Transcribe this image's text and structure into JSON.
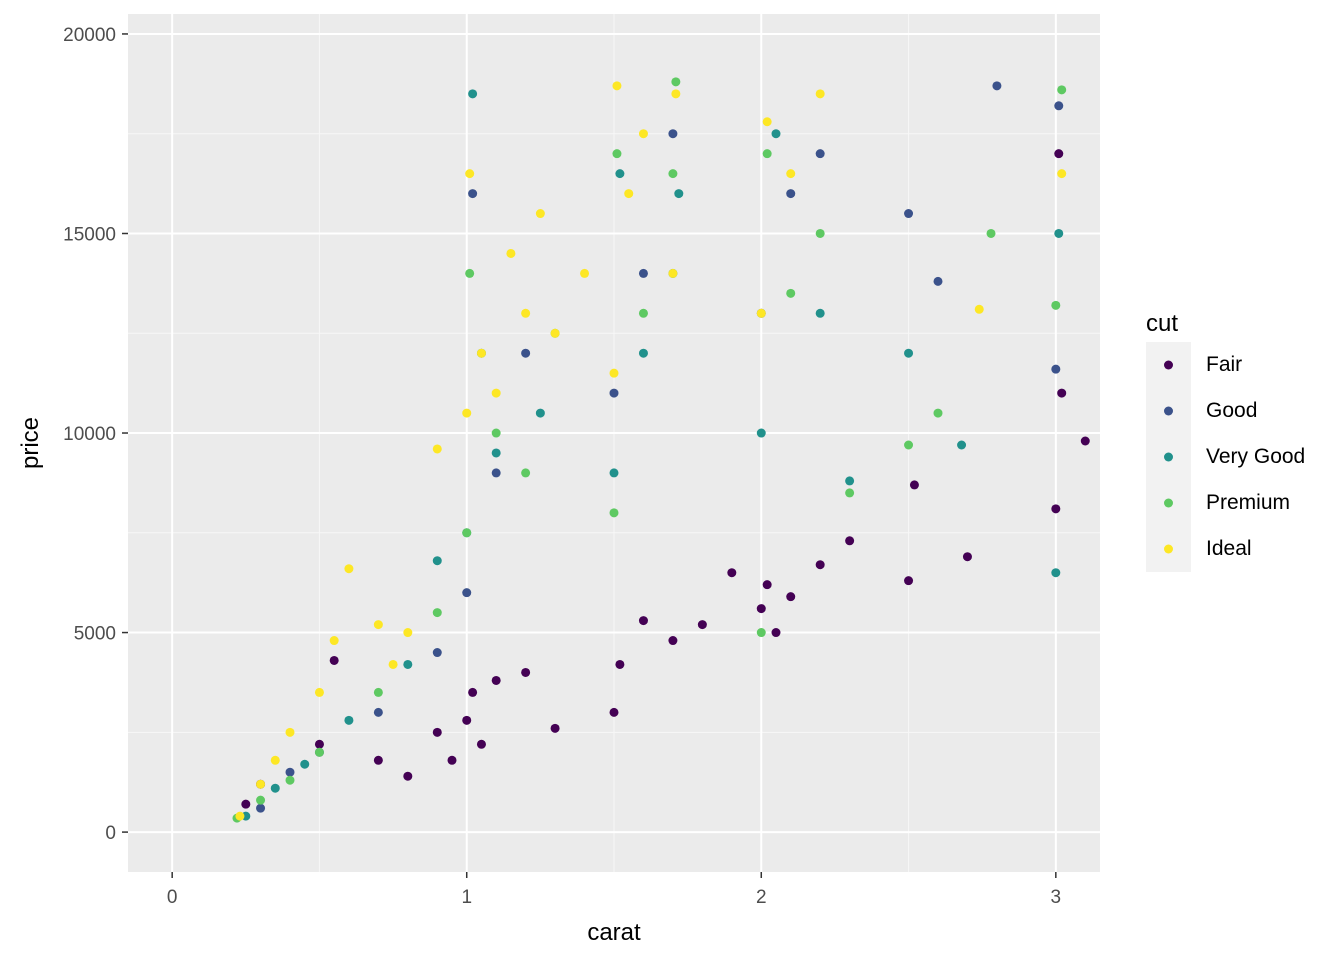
{
  "chart_data": {
    "type": "scatter",
    "xlabel": "carat",
    "ylabel": "price",
    "xlim": [
      -0.15,
      3.15
    ],
    "ylim": [
      -1000,
      20500
    ],
    "x_ticks": [
      0,
      1,
      2,
      3
    ],
    "y_ticks": [
      0,
      5000,
      10000,
      15000,
      20000
    ],
    "x_tick_labels": [
      "0",
      "1",
      "2",
      "3"
    ],
    "y_tick_labels": [
      "0",
      "5000",
      "10000",
      "15000",
      "20000"
    ],
    "grid": true,
    "legend_position": "right",
    "legend_title": "cut",
    "series": [
      {
        "name": "Fair",
        "color": "#440154",
        "x": [
          0.25,
          0.3,
          0.5,
          0.55,
          0.7,
          0.8,
          0.9,
          0.95,
          1.0,
          1.02,
          1.05,
          1.1,
          1.2,
          1.3,
          1.5,
          1.52,
          1.6,
          1.7,
          1.8,
          1.9,
          2.0,
          2.02,
          2.05,
          2.1,
          2.2,
          2.3,
          2.5,
          2.52,
          2.7,
          3.0,
          3.01,
          3.02,
          3.1
        ],
        "y": [
          700,
          1200,
          2200,
          4300,
          1800,
          1400,
          2500,
          1800,
          2800,
          3500,
          2200,
          3800,
          4000,
          2600,
          3000,
          4200,
          5300,
          4800,
          5200,
          6500,
          5600,
          6200,
          5000,
          5900,
          6700,
          7300,
          6300,
          8700,
          6900,
          8100,
          17000,
          11000,
          9800
        ]
      },
      {
        "name": "Good",
        "color": "#3b528b",
        "x": [
          0.3,
          0.4,
          0.5,
          0.7,
          0.9,
          1.0,
          1.02,
          1.1,
          1.2,
          1.5,
          1.6,
          1.7,
          2.0,
          2.1,
          2.2,
          2.5,
          2.6,
          2.8,
          3.0,
          3.01
        ],
        "y": [
          600,
          1500,
          2000,
          3000,
          4500,
          6000,
          16000,
          9000,
          12000,
          11000,
          14000,
          17500,
          13000,
          16000,
          17000,
          15500,
          13800,
          18700,
          11600,
          18200
        ]
      },
      {
        "name": "Very Good",
        "color": "#21918c",
        "x": [
          0.25,
          0.35,
          0.45,
          0.6,
          0.8,
          0.9,
          1.0,
          1.02,
          1.05,
          1.1,
          1.25,
          1.5,
          1.52,
          1.6,
          1.7,
          1.72,
          2.0,
          2.05,
          2.2,
          2.3,
          2.5,
          2.68,
          3.0,
          3.01
        ],
        "y": [
          400,
          1100,
          1700,
          2800,
          4200,
          6800,
          7500,
          18500,
          12000,
          9500,
          10500,
          9000,
          16500,
          12000,
          14000,
          16000,
          10000,
          17500,
          13000,
          8800,
          12000,
          9700,
          6500,
          15000
        ]
      },
      {
        "name": "Premium",
        "color": "#5ec962",
        "x": [
          0.22,
          0.3,
          0.4,
          0.5,
          0.7,
          0.9,
          1.0,
          1.01,
          1.1,
          1.2,
          1.3,
          1.5,
          1.51,
          1.6,
          1.7,
          1.71,
          2.0,
          2.02,
          2.1,
          2.2,
          2.3,
          2.5,
          2.6,
          2.78,
          3.0,
          3.02
        ],
        "y": [
          350,
          800,
          1300,
          2000,
          3500,
          5500,
          7500,
          14000,
          10000,
          9000,
          12500,
          8000,
          17000,
          13000,
          16500,
          18800,
          5000,
          17000,
          13500,
          15000,
          8500,
          9700,
          10500,
          15000,
          13200,
          18600
        ]
      },
      {
        "name": "Ideal",
        "color": "#fde725",
        "x": [
          0.23,
          0.3,
          0.35,
          0.4,
          0.5,
          0.55,
          0.6,
          0.7,
          0.75,
          0.8,
          0.9,
          1.0,
          1.01,
          1.05,
          1.1,
          1.15,
          1.2,
          1.25,
          1.3,
          1.4,
          1.5,
          1.51,
          1.55,
          1.6,
          1.7,
          1.71,
          2.0,
          2.02,
          2.1,
          2.2,
          2.74,
          3.02
        ],
        "y": [
          400,
          1200,
          1800,
          2500,
          3500,
          4800,
          6600,
          5200,
          4200,
          5000,
          9600,
          10500,
          16500,
          12000,
          11000,
          14500,
          13000,
          15500,
          12500,
          14000,
          11500,
          18700,
          16000,
          17500,
          14000,
          18500,
          13000,
          17800,
          16500,
          18500,
          13100,
          16500
        ]
      }
    ]
  }
}
